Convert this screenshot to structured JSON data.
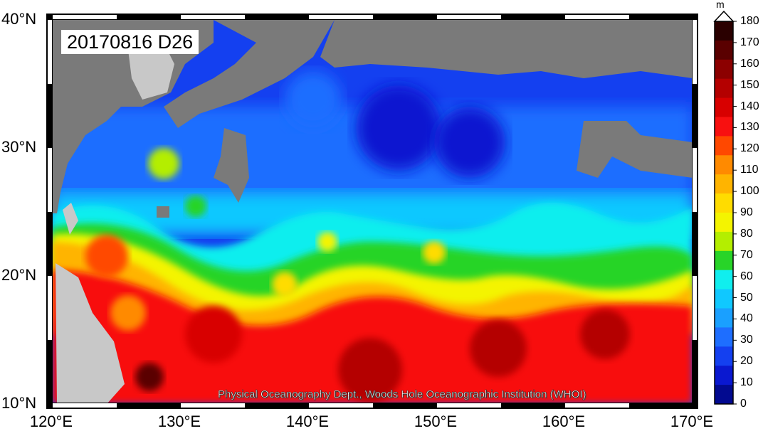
{
  "date_label": "20170816 D26",
  "credit": "Physical Oceanography Dept., Woods Hole Oceanographic Institution (WHOI)",
  "latitude_labels": [
    "40°N",
    "30°N",
    "20°N",
    "10°N"
  ],
  "longitude_labels": [
    "120°E",
    "130°E",
    "140°E",
    "150°E",
    "160°E",
    "170°E"
  ],
  "colorbar": {
    "unit": "m",
    "ticks": [
      "180",
      "170",
      "160",
      "150",
      "140",
      "130",
      "120",
      "110",
      "100",
      "90",
      "80",
      "70",
      "60",
      "50",
      "40",
      "30",
      "20",
      "10",
      "0"
    ],
    "colors": [
      "#2a0000",
      "#5a0000",
      "#8c0000",
      "#b40000",
      "#d80000",
      "#f81010",
      "#ff4800",
      "#ff8a00",
      "#ffb400",
      "#ffdc00",
      "#f4f400",
      "#b4ee00",
      "#28d428",
      "#10eeee",
      "#10c8ff",
      "#1aa0ff",
      "#1e6eff",
      "#1440f0",
      "#0a18d0",
      "#020a90"
    ]
  },
  "land_color": "#7a7a7a",
  "land_light_color": "#c8c8c8"
}
